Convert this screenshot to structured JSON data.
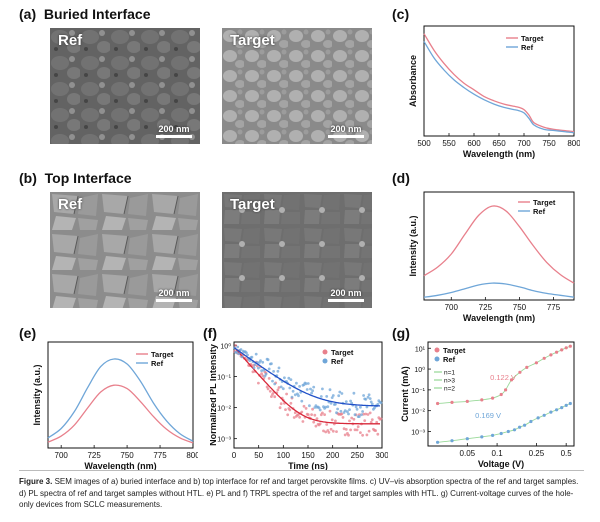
{
  "panels": {
    "a": {
      "label": "(a)",
      "title": "Buried Interface",
      "ref_label": "Ref",
      "target_label": "Target",
      "scale": "200 nm"
    },
    "b": {
      "label": "(b)",
      "title": "Top Interface",
      "ref_label": "Ref",
      "target_label": "Target",
      "scale": "200 nm"
    },
    "c": {
      "label": "(c)"
    },
    "d": {
      "label": "(d)"
    },
    "e": {
      "label": "(e)"
    },
    "f": {
      "label": "(f)"
    },
    "g": {
      "label": "(g)"
    }
  },
  "colors": {
    "target": "#e8808c",
    "ref": "#6fa6d8",
    "target_fit": "#d8283a",
    "ref_fit": "#2050c8",
    "sclc_target": "#e8808c",
    "sclc_ref": "#6fa6d8",
    "sclc_fit": "#7fcf7f"
  },
  "chart_data": [
    {
      "id": "c",
      "type": "line",
      "xlabel": "Wavelength (nm)",
      "ylabel": "Absorbance",
      "xlim": [
        500,
        800
      ],
      "ylim": [
        0,
        1
      ],
      "xticks": [
        500,
        550,
        600,
        650,
        700,
        750,
        800
      ],
      "legend": "top-right",
      "series": [
        {
          "name": "Target",
          "x": [
            500,
            520,
            540,
            560,
            580,
            600,
            620,
            640,
            660,
            680,
            690,
            700,
            710,
            720,
            740,
            760,
            780,
            800
          ],
          "y": [
            0.93,
            0.78,
            0.66,
            0.56,
            0.48,
            0.42,
            0.36,
            0.32,
            0.29,
            0.27,
            0.26,
            0.24,
            0.19,
            0.12,
            0.08,
            0.06,
            0.05,
            0.04
          ]
        },
        {
          "name": "Ref",
          "x": [
            500,
            520,
            540,
            560,
            580,
            600,
            620,
            640,
            660,
            680,
            690,
            700,
            710,
            720,
            740,
            760,
            780,
            800
          ],
          "y": [
            0.86,
            0.71,
            0.6,
            0.51,
            0.44,
            0.38,
            0.33,
            0.29,
            0.26,
            0.24,
            0.23,
            0.21,
            0.16,
            0.1,
            0.06,
            0.05,
            0.04,
            0.03
          ]
        }
      ]
    },
    {
      "id": "d",
      "type": "line",
      "xlabel": "Wavelength (nm)",
      "ylabel": "Intensity (a.u.)",
      "xlim": [
        680,
        790
      ],
      "ylim": [
        0,
        1.15
      ],
      "xticks": [
        700,
        725,
        750,
        775
      ],
      "legend": "top-right",
      "series": [
        {
          "name": "Target",
          "x": [
            680,
            690,
            700,
            710,
            720,
            730,
            740,
            750,
            760,
            770,
            780,
            790
          ],
          "y": [
            0.26,
            0.35,
            0.49,
            0.7,
            0.9,
            1.0,
            0.95,
            0.78,
            0.58,
            0.4,
            0.27,
            0.18
          ]
        },
        {
          "name": "Ref",
          "x": [
            680,
            690,
            700,
            710,
            720,
            730,
            740,
            750,
            760,
            770,
            780,
            790
          ],
          "y": [
            0.03,
            0.05,
            0.08,
            0.12,
            0.16,
            0.18,
            0.17,
            0.14,
            0.1,
            0.07,
            0.05,
            0.03
          ]
        }
      ]
    },
    {
      "id": "e",
      "type": "line",
      "xlabel": "Wavelength (nm)",
      "ylabel": "Intensity (a.u.)",
      "xlim": [
        690,
        800
      ],
      "ylim": [
        0,
        1.25
      ],
      "xticks": [
        700,
        725,
        750,
        775,
        800
      ],
      "legend": "top-right",
      "series": [
        {
          "name": "Target",
          "x": [
            690,
            700,
            710,
            720,
            730,
            740,
            750,
            760,
            770,
            780,
            790,
            800
          ],
          "y": [
            0.07,
            0.14,
            0.27,
            0.47,
            0.66,
            0.74,
            0.7,
            0.55,
            0.37,
            0.22,
            0.12,
            0.06
          ]
        },
        {
          "name": "Ref",
          "x": [
            690,
            700,
            710,
            720,
            730,
            740,
            750,
            760,
            770,
            780,
            790,
            800
          ],
          "y": [
            0.12,
            0.23,
            0.43,
            0.71,
            0.96,
            1.05,
            0.99,
            0.79,
            0.53,
            0.32,
            0.17,
            0.08
          ]
        }
      ]
    },
    {
      "id": "f",
      "type": "scatter",
      "xlabel": "Time (ns)",
      "ylabel": "Normalized PL Intensity",
      "xlim": [
        0,
        300
      ],
      "ylim": [
        0.0005,
        1.3
      ],
      "yscale": "log",
      "xticks": [
        0,
        50,
        100,
        150,
        200,
        250,
        300
      ],
      "yticks": [
        1,
        0.1,
        0.01,
        0.001
      ],
      "yticklabels": [
        "10⁰",
        "10⁻¹",
        "10⁻²",
        "10⁻³"
      ],
      "legend": "top-right",
      "series": [
        {
          "name": "Target",
          "decay": {
            "a1": 0.9,
            "t1": 24,
            "c": 0.003
          }
        },
        {
          "name": "Ref",
          "decay": {
            "a1": 0.85,
            "t1": 38,
            "c": 0.011
          }
        }
      ]
    },
    {
      "id": "g",
      "type": "scatter",
      "xlabel": "Voltage (V)",
      "ylabel": "Current (mA)",
      "xlim": [
        0.02,
        0.6
      ],
      "ylim": [
        0.0002,
        20
      ],
      "xscale": "log",
      "yscale": "log",
      "xticks": [
        0.05,
        0.1,
        0.25,
        0.5
      ],
      "xticklabels": [
        "0.05",
        "0.1",
        "0.25",
        "0.5"
      ],
      "yticks": [
        10,
        1,
        0.1,
        0.01,
        0.001
      ],
      "yticklabels": [
        "10¹",
        "10⁰",
        "10⁻¹",
        "10⁻²",
        "10⁻³"
      ],
      "legend": "top-left",
      "legend_extra": [
        "n=1",
        "n>3",
        "n=2"
      ],
      "annotations": [
        {
          "text": "0.122 V",
          "color": "#e8808c"
        },
        {
          "text": "0.169 V",
          "color": "#6fa6d8"
        }
      ],
      "series": [
        {
          "name": "Target",
          "x": [
            0.025,
            0.035,
            0.05,
            0.07,
            0.09,
            0.11,
            0.122,
            0.14,
            0.17,
            0.2,
            0.25,
            0.3,
            0.35,
            0.4,
            0.45,
            0.5,
            0.55
          ],
          "y": [
            0.022,
            0.025,
            0.028,
            0.033,
            0.04,
            0.06,
            0.1,
            0.3,
            0.7,
            1.2,
            2,
            3.3,
            4.8,
            6.5,
            8.3,
            10.5,
            12.5
          ]
        },
        {
          "name": "Ref",
          "x": [
            0.025,
            0.035,
            0.05,
            0.07,
            0.09,
            0.11,
            0.13,
            0.15,
            0.169,
            0.19,
            0.22,
            0.26,
            0.3,
            0.35,
            0.4,
            0.45,
            0.5,
            0.55
          ],
          "y": [
            0.0003,
            0.00036,
            0.00045,
            0.00055,
            0.00065,
            0.0008,
            0.001,
            0.0012,
            0.0016,
            0.002,
            0.003,
            0.0045,
            0.006,
            0.0085,
            0.011,
            0.014,
            0.018,
            0.022
          ]
        }
      ]
    }
  ],
  "caption": {
    "fig_label": "Figure 3.",
    "text": " SEM images of a) buried interface and b) top interface for ref and target perovskite films. c) UV–vis absorption spectra of the ref and target samples. d) PL spectra of ref and target samples without HTL. e) PL and f) TRPL spectra of the ref and target samples with HTL. g) Current-voltage curves of the hole-only devices from SCLC measurements."
  }
}
